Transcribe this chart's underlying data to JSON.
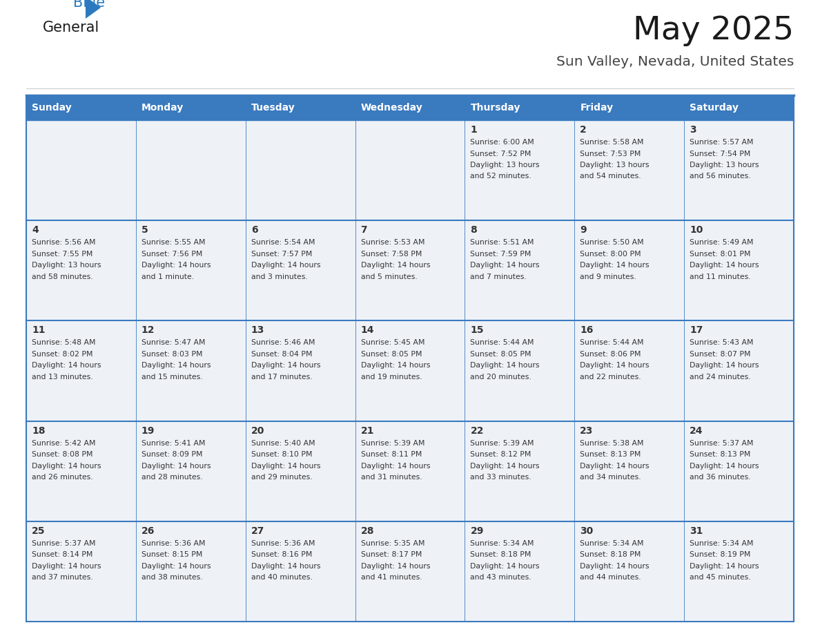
{
  "title": "May 2025",
  "subtitle": "Sun Valley, Nevada, United States",
  "header_color": "#3a7abf",
  "header_text_color": "#ffffff",
  "cell_bg_color": "#eef2f7",
  "border_color": "#3a7abf",
  "text_color": "#333333",
  "day_headers": [
    "Sunday",
    "Monday",
    "Tuesday",
    "Wednesday",
    "Thursday",
    "Friday",
    "Saturday"
  ],
  "days": [
    {
      "day": 1,
      "col": 4,
      "row": 0,
      "sunrise": "6:00 AM",
      "sunset": "7:52 PM",
      "daylight_h": "13 hours",
      "daylight_m": "and 52 minutes."
    },
    {
      "day": 2,
      "col": 5,
      "row": 0,
      "sunrise": "5:58 AM",
      "sunset": "7:53 PM",
      "daylight_h": "13 hours",
      "daylight_m": "and 54 minutes."
    },
    {
      "day": 3,
      "col": 6,
      "row": 0,
      "sunrise": "5:57 AM",
      "sunset": "7:54 PM",
      "daylight_h": "13 hours",
      "daylight_m": "and 56 minutes."
    },
    {
      "day": 4,
      "col": 0,
      "row": 1,
      "sunrise": "5:56 AM",
      "sunset": "7:55 PM",
      "daylight_h": "13 hours",
      "daylight_m": "and 58 minutes."
    },
    {
      "day": 5,
      "col": 1,
      "row": 1,
      "sunrise": "5:55 AM",
      "sunset": "7:56 PM",
      "daylight_h": "14 hours",
      "daylight_m": "and 1 minute."
    },
    {
      "day": 6,
      "col": 2,
      "row": 1,
      "sunrise": "5:54 AM",
      "sunset": "7:57 PM",
      "daylight_h": "14 hours",
      "daylight_m": "and 3 minutes."
    },
    {
      "day": 7,
      "col": 3,
      "row": 1,
      "sunrise": "5:53 AM",
      "sunset": "7:58 PM",
      "daylight_h": "14 hours",
      "daylight_m": "and 5 minutes."
    },
    {
      "day": 8,
      "col": 4,
      "row": 1,
      "sunrise": "5:51 AM",
      "sunset": "7:59 PM",
      "daylight_h": "14 hours",
      "daylight_m": "and 7 minutes."
    },
    {
      "day": 9,
      "col": 5,
      "row": 1,
      "sunrise": "5:50 AM",
      "sunset": "8:00 PM",
      "daylight_h": "14 hours",
      "daylight_m": "and 9 minutes."
    },
    {
      "day": 10,
      "col": 6,
      "row": 1,
      "sunrise": "5:49 AM",
      "sunset": "8:01 PM",
      "daylight_h": "14 hours",
      "daylight_m": "and 11 minutes."
    },
    {
      "day": 11,
      "col": 0,
      "row": 2,
      "sunrise": "5:48 AM",
      "sunset": "8:02 PM",
      "daylight_h": "14 hours",
      "daylight_m": "and 13 minutes."
    },
    {
      "day": 12,
      "col": 1,
      "row": 2,
      "sunrise": "5:47 AM",
      "sunset": "8:03 PM",
      "daylight_h": "14 hours",
      "daylight_m": "and 15 minutes."
    },
    {
      "day": 13,
      "col": 2,
      "row": 2,
      "sunrise": "5:46 AM",
      "sunset": "8:04 PM",
      "daylight_h": "14 hours",
      "daylight_m": "and 17 minutes."
    },
    {
      "day": 14,
      "col": 3,
      "row": 2,
      "sunrise": "5:45 AM",
      "sunset": "8:05 PM",
      "daylight_h": "14 hours",
      "daylight_m": "and 19 minutes."
    },
    {
      "day": 15,
      "col": 4,
      "row": 2,
      "sunrise": "5:44 AM",
      "sunset": "8:05 PM",
      "daylight_h": "14 hours",
      "daylight_m": "and 20 minutes."
    },
    {
      "day": 16,
      "col": 5,
      "row": 2,
      "sunrise": "5:44 AM",
      "sunset": "8:06 PM",
      "daylight_h": "14 hours",
      "daylight_m": "and 22 minutes."
    },
    {
      "day": 17,
      "col": 6,
      "row": 2,
      "sunrise": "5:43 AM",
      "sunset": "8:07 PM",
      "daylight_h": "14 hours",
      "daylight_m": "and 24 minutes."
    },
    {
      "day": 18,
      "col": 0,
      "row": 3,
      "sunrise": "5:42 AM",
      "sunset": "8:08 PM",
      "daylight_h": "14 hours",
      "daylight_m": "and 26 minutes."
    },
    {
      "day": 19,
      "col": 1,
      "row": 3,
      "sunrise": "5:41 AM",
      "sunset": "8:09 PM",
      "daylight_h": "14 hours",
      "daylight_m": "and 28 minutes."
    },
    {
      "day": 20,
      "col": 2,
      "row": 3,
      "sunrise": "5:40 AM",
      "sunset": "8:10 PM",
      "daylight_h": "14 hours",
      "daylight_m": "and 29 minutes."
    },
    {
      "day": 21,
      "col": 3,
      "row": 3,
      "sunrise": "5:39 AM",
      "sunset": "8:11 PM",
      "daylight_h": "14 hours",
      "daylight_m": "and 31 minutes."
    },
    {
      "day": 22,
      "col": 4,
      "row": 3,
      "sunrise": "5:39 AM",
      "sunset": "8:12 PM",
      "daylight_h": "14 hours",
      "daylight_m": "and 33 minutes."
    },
    {
      "day": 23,
      "col": 5,
      "row": 3,
      "sunrise": "5:38 AM",
      "sunset": "8:13 PM",
      "daylight_h": "14 hours",
      "daylight_m": "and 34 minutes."
    },
    {
      "day": 24,
      "col": 6,
      "row": 3,
      "sunrise": "5:37 AM",
      "sunset": "8:13 PM",
      "daylight_h": "14 hours",
      "daylight_m": "and 36 minutes."
    },
    {
      "day": 25,
      "col": 0,
      "row": 4,
      "sunrise": "5:37 AM",
      "sunset": "8:14 PM",
      "daylight_h": "14 hours",
      "daylight_m": "and 37 minutes."
    },
    {
      "day": 26,
      "col": 1,
      "row": 4,
      "sunrise": "5:36 AM",
      "sunset": "8:15 PM",
      "daylight_h": "14 hours",
      "daylight_m": "and 38 minutes."
    },
    {
      "day": 27,
      "col": 2,
      "row": 4,
      "sunrise": "5:36 AM",
      "sunset": "8:16 PM",
      "daylight_h": "14 hours",
      "daylight_m": "and 40 minutes."
    },
    {
      "day": 28,
      "col": 3,
      "row": 4,
      "sunrise": "5:35 AM",
      "sunset": "8:17 PM",
      "daylight_h": "14 hours",
      "daylight_m": "and 41 minutes."
    },
    {
      "day": 29,
      "col": 4,
      "row": 4,
      "sunrise": "5:34 AM",
      "sunset": "8:18 PM",
      "daylight_h": "14 hours",
      "daylight_m": "and 43 minutes."
    },
    {
      "day": 30,
      "col": 5,
      "row": 4,
      "sunrise": "5:34 AM",
      "sunset": "8:18 PM",
      "daylight_h": "14 hours",
      "daylight_m": "and 44 minutes."
    },
    {
      "day": 31,
      "col": 6,
      "row": 4,
      "sunrise": "5:34 AM",
      "sunset": "8:19 PM",
      "daylight_h": "14 hours",
      "daylight_m": "and 45 minutes."
    }
  ],
  "logo_color_general": "#1a1a1a",
  "logo_color_blue": "#2b7abf",
  "logo_triangle_color": "#2b7abf",
  "fig_width": 11.88,
  "fig_height": 9.18,
  "dpi": 100
}
